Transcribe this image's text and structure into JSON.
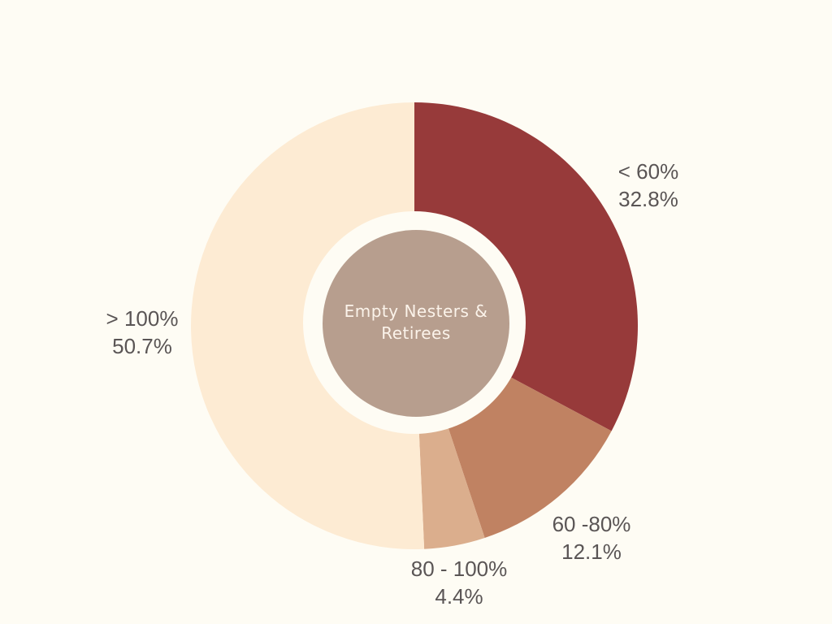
{
  "chart_data": {
    "type": "pie",
    "variant": "donut",
    "title": "Empty Nesters & Retirees",
    "start": "top",
    "direction": "clockwise",
    "slices": [
      {
        "label": "< 60%",
        "value": 32.8,
        "value_label": "32.8%",
        "color": "#973a3a"
      },
      {
        "label": "60 -80%",
        "value": 12.1,
        "value_label": "12.1%",
        "color": "#c08262"
      },
      {
        "label": "80 - 100%",
        "value": 4.4,
        "value_label": "4.4%",
        "color": "#dbae8d"
      },
      {
        "label": "> 100%",
        "value": 50.7,
        "value_label": "50.7%",
        "color": "#fdebd3"
      }
    ],
    "center_color": "#b79e8e",
    "background": "#fefcf4"
  }
}
